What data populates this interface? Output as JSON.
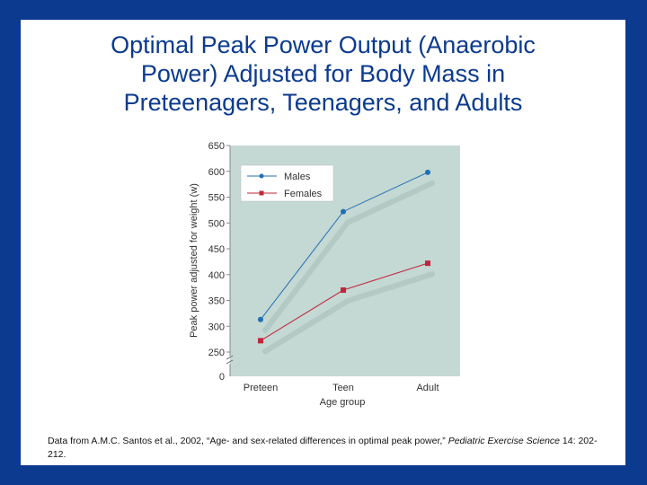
{
  "slide": {
    "title_lines": [
      "Optimal Peak Power Output (Anaerobic",
      "Power) Adjusted for Body Mass in",
      "Preteenagers, Teenagers, and Adults"
    ],
    "citation": {
      "prefix": "Data from A.M.C. Santos et al., 2002, “Age- and sex-related differences in optimal peak power,” ",
      "journal": "Pediatric Exercise Science",
      "suffix": " 14: 202-212."
    }
  },
  "colors": {
    "background": "#0b3a8f",
    "plot_bg": "#c4d8d4",
    "males": "#1f6fb4",
    "females": "#c0263a",
    "axis_text": "#333333"
  },
  "chart_data": {
    "type": "line",
    "title": "",
    "xlabel": "Age group",
    "ylabel": "Peak power adjusted for weight (w)",
    "categories": [
      "Preteen",
      "Teen",
      "Adult"
    ],
    "ylim": [
      250,
      650
    ],
    "yticks": [
      650,
      600,
      550,
      500,
      450,
      400,
      350,
      300,
      250
    ],
    "y_break_label": "0",
    "legend_position": "top-left",
    "series": [
      {
        "name": "Males",
        "marker": "circle",
        "values": [
          313,
          522,
          598
        ]
      },
      {
        "name": "Females",
        "marker": "square",
        "values": [
          272,
          370,
          422
        ]
      }
    ]
  }
}
